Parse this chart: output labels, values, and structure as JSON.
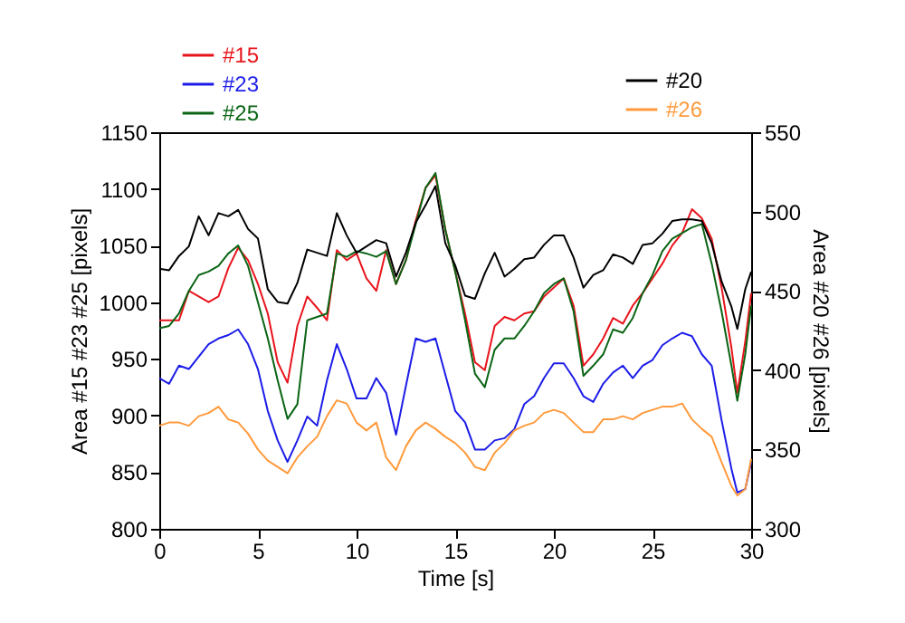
{
  "chart_data": {
    "type": "line",
    "xlabel": "Time [s]",
    "ylabel": "Area #15 #23 #25 [pixels]",
    "y2label": "Area #20 #26 [pixels]",
    "x": [
      0,
      0.5,
      1,
      1.5,
      2,
      2.5,
      3,
      3.5,
      4,
      4.5,
      5,
      5.5,
      6,
      6.5,
      7,
      7.5,
      8,
      8.5,
      9,
      9.5,
      10,
      10.5,
      11,
      11.5,
      12,
      12.5,
      13,
      13.5,
      14,
      14.5,
      15,
      15.5,
      16,
      16.5,
      17,
      17.5,
      18,
      18.5,
      19,
      19.5,
      20,
      20.5,
      21,
      21.5,
      22,
      22.5,
      23,
      23.5,
      24,
      24.5,
      25,
      25.5,
      26,
      26.5,
      27,
      27.5,
      28,
      28.5,
      29,
      29.3,
      29.7,
      30
    ],
    "xlim": [
      0,
      30
    ],
    "xticks": [
      0,
      5,
      10,
      15,
      20,
      25,
      30
    ],
    "ylim": [
      800,
      1150
    ],
    "yticks": [
      800,
      850,
      900,
      950,
      1000,
      1050,
      1100,
      1150
    ],
    "y2lim": [
      300,
      550
    ],
    "y2ticks": [
      300,
      350,
      400,
      450,
      500,
      550
    ],
    "legend": "top",
    "grid": false,
    "series": [
      {
        "name": "#15",
        "color": "#e8141c",
        "values": [
          984,
          984,
          984,
          1010,
          1005,
          1000,
          1005,
          1030,
          1048,
          1037,
          1016,
          990,
          947,
          929,
          979,
          1005,
          995,
          984,
          1046,
          1037,
          1043,
          1021,
          1010,
          1046,
          1016,
          1037,
          1072,
          1101,
          1112,
          1064,
          1027,
          990,
          947,
          940,
          979,
          987,
          984,
          990,
          992,
          1005,
          1013,
          1021,
          997,
          944,
          954,
          968,
          986,
          981,
          997,
          1008,
          1021,
          1034,
          1050,
          1061,
          1082,
          1074,
          1056,
          1013,
          960,
          920,
          965,
          1008
        ]
      },
      {
        "name": "#23",
        "color": "#1c1ce8",
        "values": [
          933,
          928,
          944,
          941,
          952,
          963,
          968,
          971,
          976,
          963,
          941,
          904,
          878,
          859,
          878,
          899,
          891,
          931,
          963,
          941,
          915,
          915,
          933,
          920,
          883,
          926,
          968,
          965,
          968,
          936,
          904,
          894,
          870,
          870,
          878,
          880,
          888,
          910,
          917,
          933,
          946,
          946,
          933,
          917,
          912,
          928,
          938,
          944,
          933,
          944,
          949,
          962,
          968,
          973,
          970,
          954,
          944,
          896,
          853,
          832,
          835,
          859
        ]
      },
      {
        "name": "#25",
        "color": "#0a6414",
        "values": [
          977,
          979,
          990,
          1010,
          1024,
          1027,
          1032,
          1043,
          1050,
          1032,
          1000,
          968,
          931,
          897,
          910,
          984,
          987,
          990,
          1043,
          1040,
          1045,
          1043,
          1040,
          1045,
          1016,
          1037,
          1069,
          1101,
          1114,
          1064,
          1027,
          984,
          937,
          925,
          958,
          968,
          968,
          979,
          992,
          1008,
          1016,
          1021,
          992,
          935,
          944,
          954,
          976,
          973,
          986,
          1008,
          1024,
          1045,
          1056,
          1061,
          1066,
          1069,
          1034,
          992,
          944,
          913,
          954,
          997
        ]
      },
      {
        "name": "#20",
        "color": "#000000",
        "axis": "y2",
        "values": [
          464,
          463,
          472,
          478,
          497,
          485,
          499,
          497,
          501,
          489,
          483,
          451,
          443,
          442,
          455,
          476,
          474,
          472,
          499,
          485,
          474,
          478,
          482,
          480,
          459,
          474,
          493,
          504,
          516,
          480,
          466,
          447,
          445,
          461,
          474,
          459,
          464,
          470,
          471,
          479,
          485,
          485,
          471,
          452,
          460,
          463,
          473,
          471,
          467,
          479,
          480,
          486,
          494,
          495,
          495,
          494,
          480,
          456,
          440,
          426,
          451,
          462
        ]
      },
      {
        "name": "#26",
        "color": "#ff9a3c",
        "axis": "y2",
        "values": [
          365,
          367,
          367,
          365,
          371,
          373,
          377,
          369,
          367,
          360,
          350,
          343,
          339,
          335,
          345,
          352,
          358,
          371,
          381,
          379,
          367,
          362,
          367,
          345,
          337,
          352,
          362,
          367,
          363,
          358,
          354,
          348,
          339,
          337,
          348,
          354,
          362,
          365,
          367,
          373,
          375,
          373,
          367,
          361,
          361,
          369,
          369,
          371,
          369,
          373,
          375,
          377,
          377,
          379,
          369,
          363,
          358,
          342,
          327,
          321,
          325,
          344
        ]
      }
    ]
  }
}
